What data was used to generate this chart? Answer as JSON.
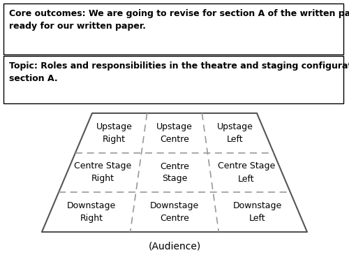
{
  "text_box1": "Core outcomes: We are going to revise for section A of the written paper\nready for our written paper.",
  "text_box2": "Topic: Roles and responsibilities in the theatre and staging configurations\nsection A.",
  "audience_label": "(Audience)",
  "stage_labels": [
    {
      "text": "Upstage\nRight",
      "col": 0,
      "row": 0
    },
    {
      "text": "Upstage\nCentre",
      "col": 1,
      "row": 0
    },
    {
      "text": "Upstage\nLeft",
      "col": 2,
      "row": 0
    },
    {
      "text": "Centre Stage\nRight",
      "col": 0,
      "row": 1
    },
    {
      "text": "Centre\nStage",
      "col": 1,
      "row": 1
    },
    {
      "text": "Centre Stage\nLeft",
      "col": 2,
      "row": 1
    },
    {
      "text": "Downstage\nRight",
      "col": 0,
      "row": 2
    },
    {
      "text": "Downstage\nCentre",
      "col": 1,
      "row": 2
    },
    {
      "text": "Downstage\nLeft",
      "col": 2,
      "row": 2
    }
  ],
  "bg_color": "#ffffff",
  "border_color": "#000000",
  "text_color": "#000000",
  "dashed_color": "#999999",
  "solid_color": "#555555",
  "label_fontsize": 9,
  "header_fontsize": 9,
  "audience_fontsize": 10
}
